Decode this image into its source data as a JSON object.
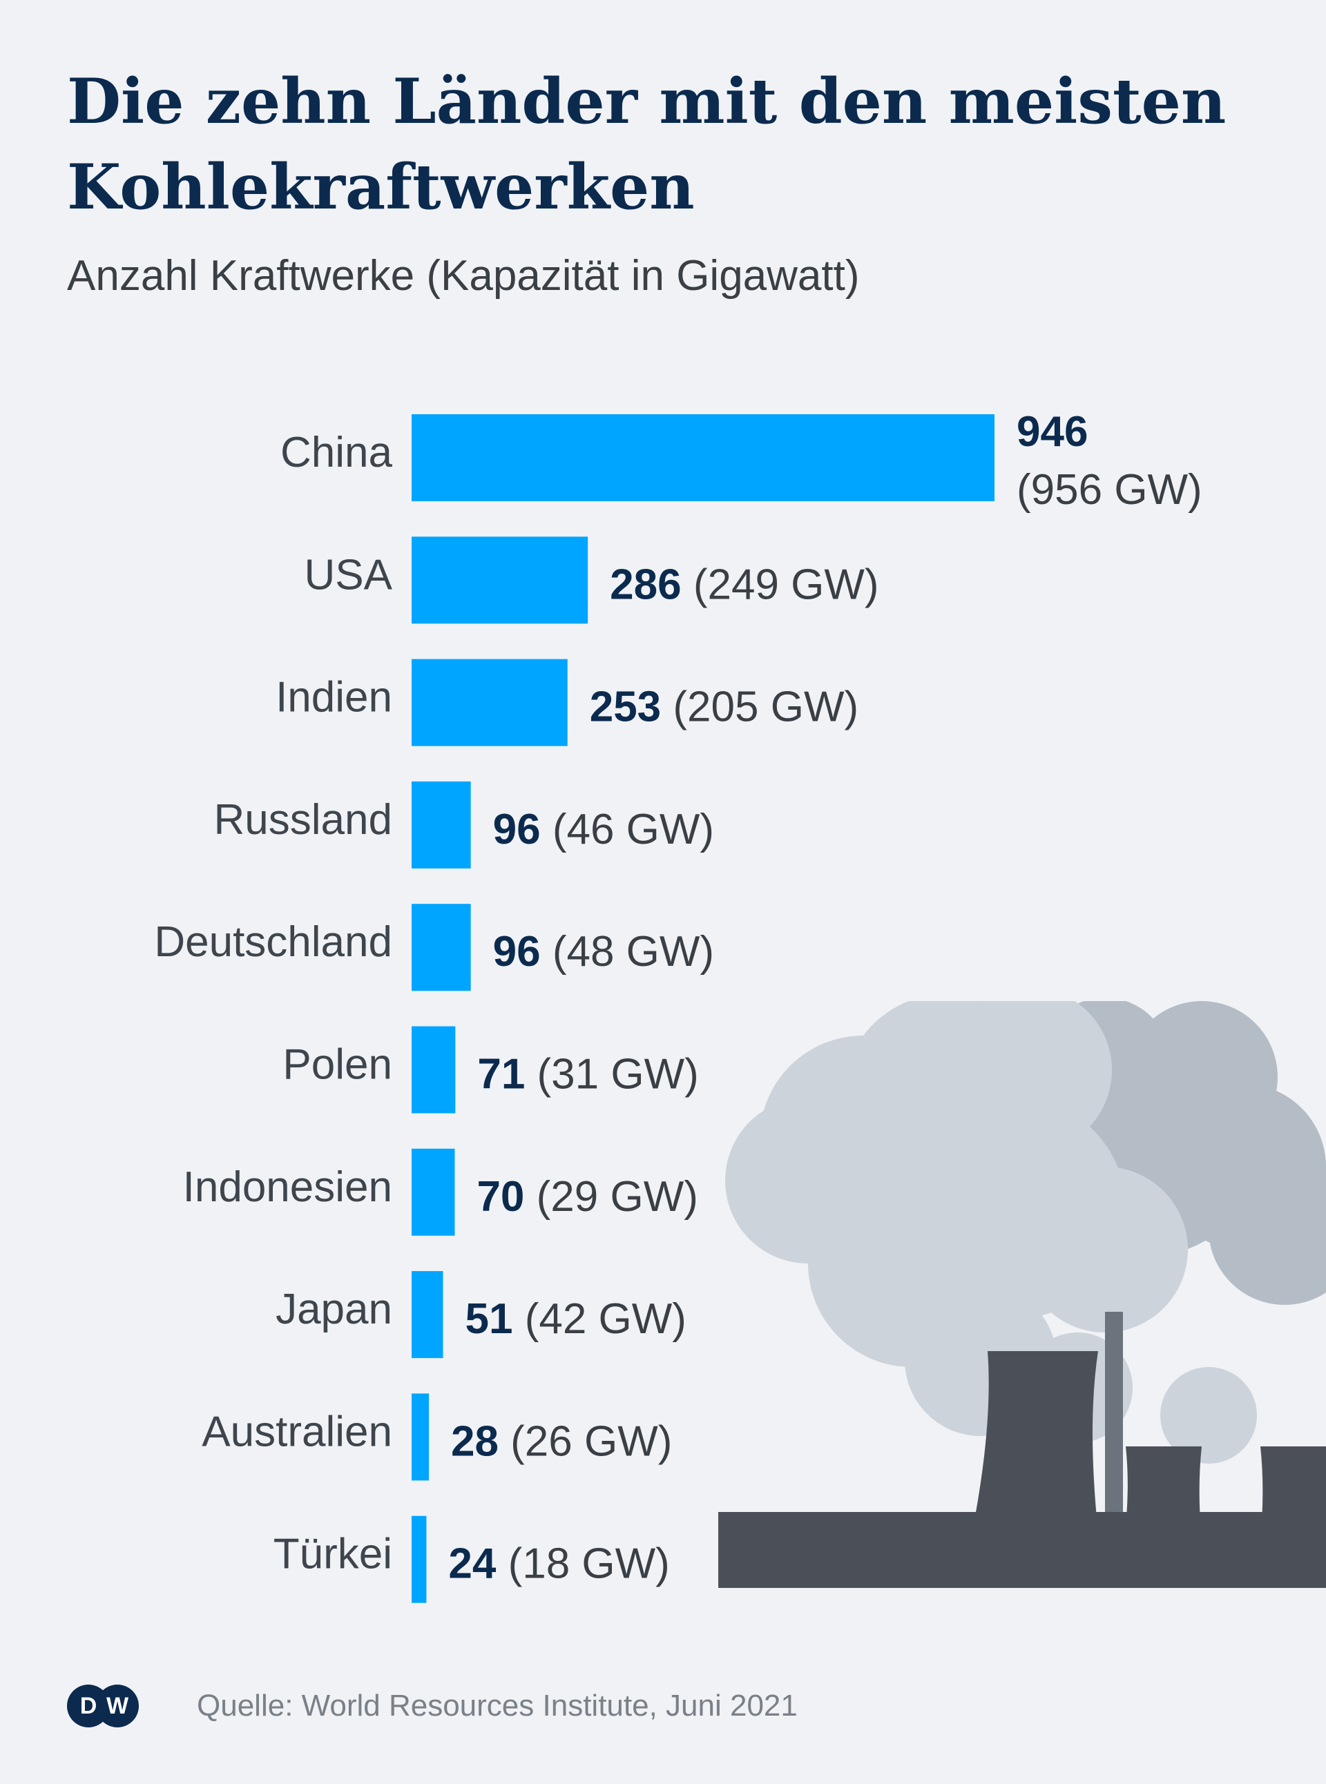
{
  "title": "Die zehn Länder mit den meisten Kohlekraftwerken",
  "subtitle": "Anzahl Kraftwerke (Kapazität in Gigawatt)",
  "source": "Quelle: World Resources Institute, Juni 2021",
  "logo": {
    "letters": [
      "D",
      "W"
    ]
  },
  "colors": {
    "bar": "#00a5ff",
    "background": "#f0f2f5",
    "title": "#0b2a4e",
    "text": "#3f454d"
  },
  "illustration": "coal-power-plant-smoke",
  "chart_data": {
    "type": "bar",
    "orientation": "horizontal",
    "categories": [
      "China",
      "USA",
      "Indien",
      "Russland",
      "Deutschland",
      "Polen",
      "Indonesien",
      "Japan",
      "Australien",
      "Türkei"
    ],
    "values": [
      946,
      286,
      253,
      96,
      96,
      71,
      70,
      51,
      28,
      24
    ],
    "capacity_labels": [
      "(956 GW)",
      "(249 GW)",
      "(205 GW)",
      "(46 GW)",
      "(48 GW)",
      "(31 GW)",
      "(29 GW)",
      "(42 GW)",
      "(26 GW)",
      "(18 GW)"
    ],
    "capacity_gw": [
      956,
      249,
      205,
      46,
      48,
      31,
      29,
      42,
      26,
      18
    ],
    "xlim": [
      0,
      946
    ],
    "grid": false,
    "legend": "none"
  }
}
